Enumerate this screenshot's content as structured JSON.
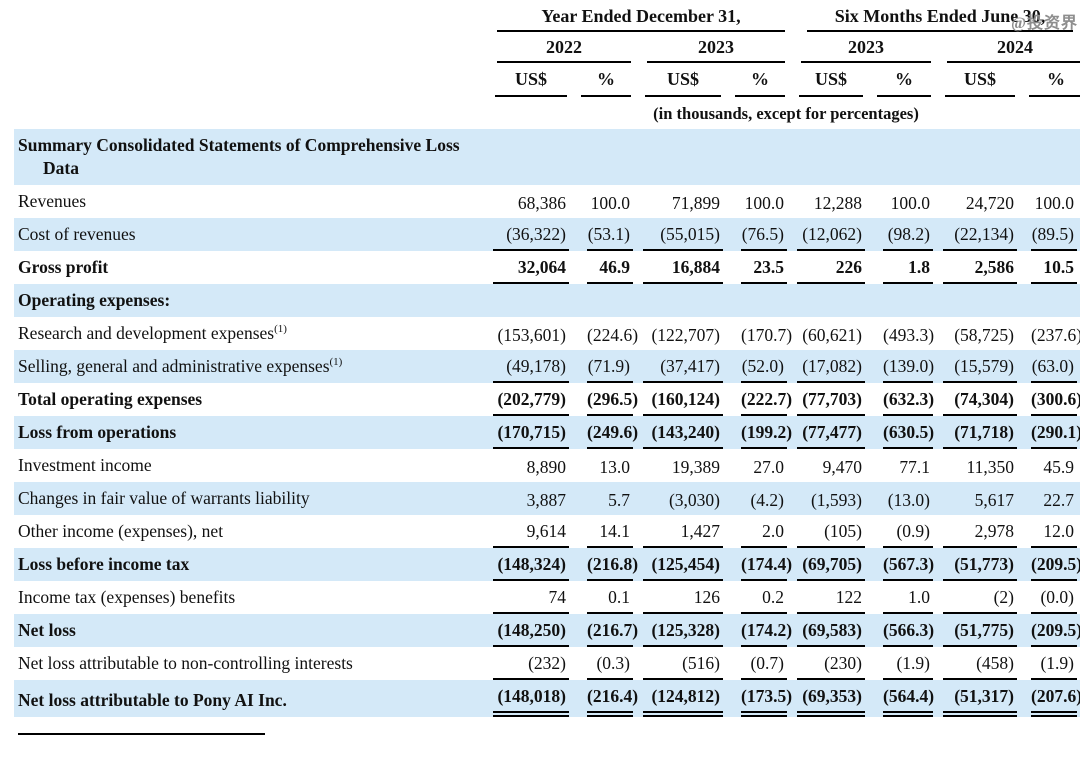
{
  "page": {
    "watermark": "@投资界"
  },
  "header": {
    "group1": "Year Ended December 31,",
    "group2": "Six Months Ended June 30,",
    "years": [
      "2022",
      "2023",
      "2023",
      "2024"
    ],
    "unit_cols": [
      "US$",
      "%",
      "US$",
      "%",
      "US$",
      "%",
      "US$",
      "%"
    ],
    "note": "(in thousands, except for percentages)"
  },
  "table": {
    "columns": [
      "FY2022 US$",
      "FY2022 %",
      "FY2023 US$",
      "FY2023 %",
      "6M2023 US$",
      "6M2023 %",
      "6M2024 US$",
      "6M2024 %"
    ],
    "rows": [
      {
        "label": "Summary Consolidated Statements of Comprehensive Loss Data",
        "bold": true,
        "shade": true,
        "underline": "none",
        "values": []
      },
      {
        "label": "Revenues",
        "bold": false,
        "shade": false,
        "underline": "none",
        "values": [
          "68,386",
          "100.0",
          "71,899",
          "100.0",
          "12,288",
          "100.0",
          "24,720",
          "100.0"
        ]
      },
      {
        "label": "Cost of revenues",
        "bold": false,
        "shade": true,
        "underline": "single",
        "values": [
          "(36,322)",
          "(53.1)",
          "(55,015)",
          "(76.5)",
          "(12,062)",
          "(98.2)",
          "(22,134)",
          "(89.5)"
        ]
      },
      {
        "label": "Gross profit",
        "bold": true,
        "shade": false,
        "underline": "single",
        "values": [
          "32,064",
          "46.9",
          "16,884",
          "23.5",
          "226",
          "1.8",
          "2,586",
          "10.5"
        ]
      },
      {
        "label": "Operating expenses:",
        "bold": true,
        "shade": true,
        "underline": "none",
        "values": []
      },
      {
        "label": "Research and development expenses",
        "sup": "(1)",
        "bold": false,
        "shade": false,
        "underline": "none",
        "values": [
          "(153,601)",
          "(224.6)",
          "(122,707)",
          "(170.7)",
          "(60,621)",
          "(493.3)",
          "(58,725)",
          "(237.6)"
        ]
      },
      {
        "label": "Selling, general and administrative expenses",
        "sup": "(1)",
        "bold": false,
        "shade": true,
        "underline": "single",
        "values": [
          "(49,178)",
          "(71.9)",
          "(37,417)",
          "(52.0)",
          "(17,082)",
          "(139.0)",
          "(15,579)",
          "(63.0)"
        ]
      },
      {
        "label": "Total operating expenses",
        "bold": true,
        "shade": false,
        "underline": "single",
        "values": [
          "(202,779)",
          "(296.5)",
          "(160,124)",
          "(222.7)",
          "(77,703)",
          "(632.3)",
          "(74,304)",
          "(300.6)"
        ]
      },
      {
        "label": "Loss from operations",
        "bold": true,
        "shade": true,
        "underline": "single",
        "values": [
          "(170,715)",
          "(249.6)",
          "(143,240)",
          "(199.2)",
          "(77,477)",
          "(630.5)",
          "(71,718)",
          "(290.1)"
        ]
      },
      {
        "label": "Investment income",
        "bold": false,
        "shade": false,
        "underline": "none",
        "values": [
          "8,890",
          "13.0",
          "19,389",
          "27.0",
          "9,470",
          "77.1",
          "11,350",
          "45.9"
        ]
      },
      {
        "label": "Changes in fair value of warrants liability",
        "bold": false,
        "shade": true,
        "underline": "none",
        "values": [
          "3,887",
          "5.7",
          "(3,030)",
          "(4.2)",
          "(1,593)",
          "(13.0)",
          "5,617",
          "22.7"
        ]
      },
      {
        "label": "Other income (expenses), net",
        "bold": false,
        "shade": false,
        "underline": "single",
        "values": [
          "9,614",
          "14.1",
          "1,427",
          "2.0",
          "(105)",
          "(0.9)",
          "2,978",
          "12.0"
        ]
      },
      {
        "label": "Loss before income tax",
        "bold": true,
        "shade": true,
        "underline": "single",
        "values": [
          "(148,324)",
          "(216.8)",
          "(125,454)",
          "(174.4)",
          "(69,705)",
          "(567.3)",
          "(51,773)",
          "(209.5)"
        ]
      },
      {
        "label": "Income tax (expenses) benefits",
        "bold": false,
        "shade": false,
        "underline": "single",
        "values": [
          "74",
          "0.1",
          "126",
          "0.2",
          "122",
          "1.0",
          "(2)",
          "(0.0)"
        ]
      },
      {
        "label": "Net loss",
        "bold": true,
        "shade": true,
        "underline": "single",
        "values": [
          "(148,250)",
          "(216.7)",
          "(125,328)",
          "(174.2)",
          "(69,583)",
          "(566.3)",
          "(51,775)",
          "(209.5)"
        ]
      },
      {
        "label": "Net loss attributable to non-controlling interests",
        "bold": false,
        "shade": false,
        "underline": "single",
        "values": [
          "(232)",
          "(0.3)",
          "(516)",
          "(0.7)",
          "(230)",
          "(1.9)",
          "(458)",
          "(1.9)"
        ]
      },
      {
        "label": "Net loss attributable to Pony AI Inc.",
        "bold": true,
        "shade": true,
        "underline": "double",
        "values": [
          "(148,018)",
          "(216.4)",
          "(124,812)",
          "(173.5)",
          "(69,353)",
          "(564.4)",
          "(51,317)",
          "(207.6)"
        ]
      }
    ]
  },
  "colors": {
    "row_shade": "#d4e9f8",
    "rule": "#000000",
    "text": "#111111",
    "watermark_gray": "#8e8e8e"
  }
}
